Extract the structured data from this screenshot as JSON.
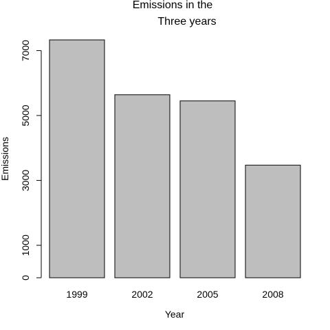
{
  "chart_data": {
    "type": "bar",
    "title_lines": [
      "Emissions in the",
      "Three years"
    ],
    "xlabel": "Year",
    "ylabel": "Emissions",
    "categories": [
      "1999",
      "2002",
      "2005",
      "2008"
    ],
    "values": [
      7330,
      5640,
      5450,
      3470
    ],
    "yticks": [
      0,
      1000,
      3000,
      5000,
      7000
    ],
    "ylim": [
      0,
      7330
    ],
    "grid": false,
    "bar_color": "#bebebe",
    "bar_stroke": "#000000"
  }
}
